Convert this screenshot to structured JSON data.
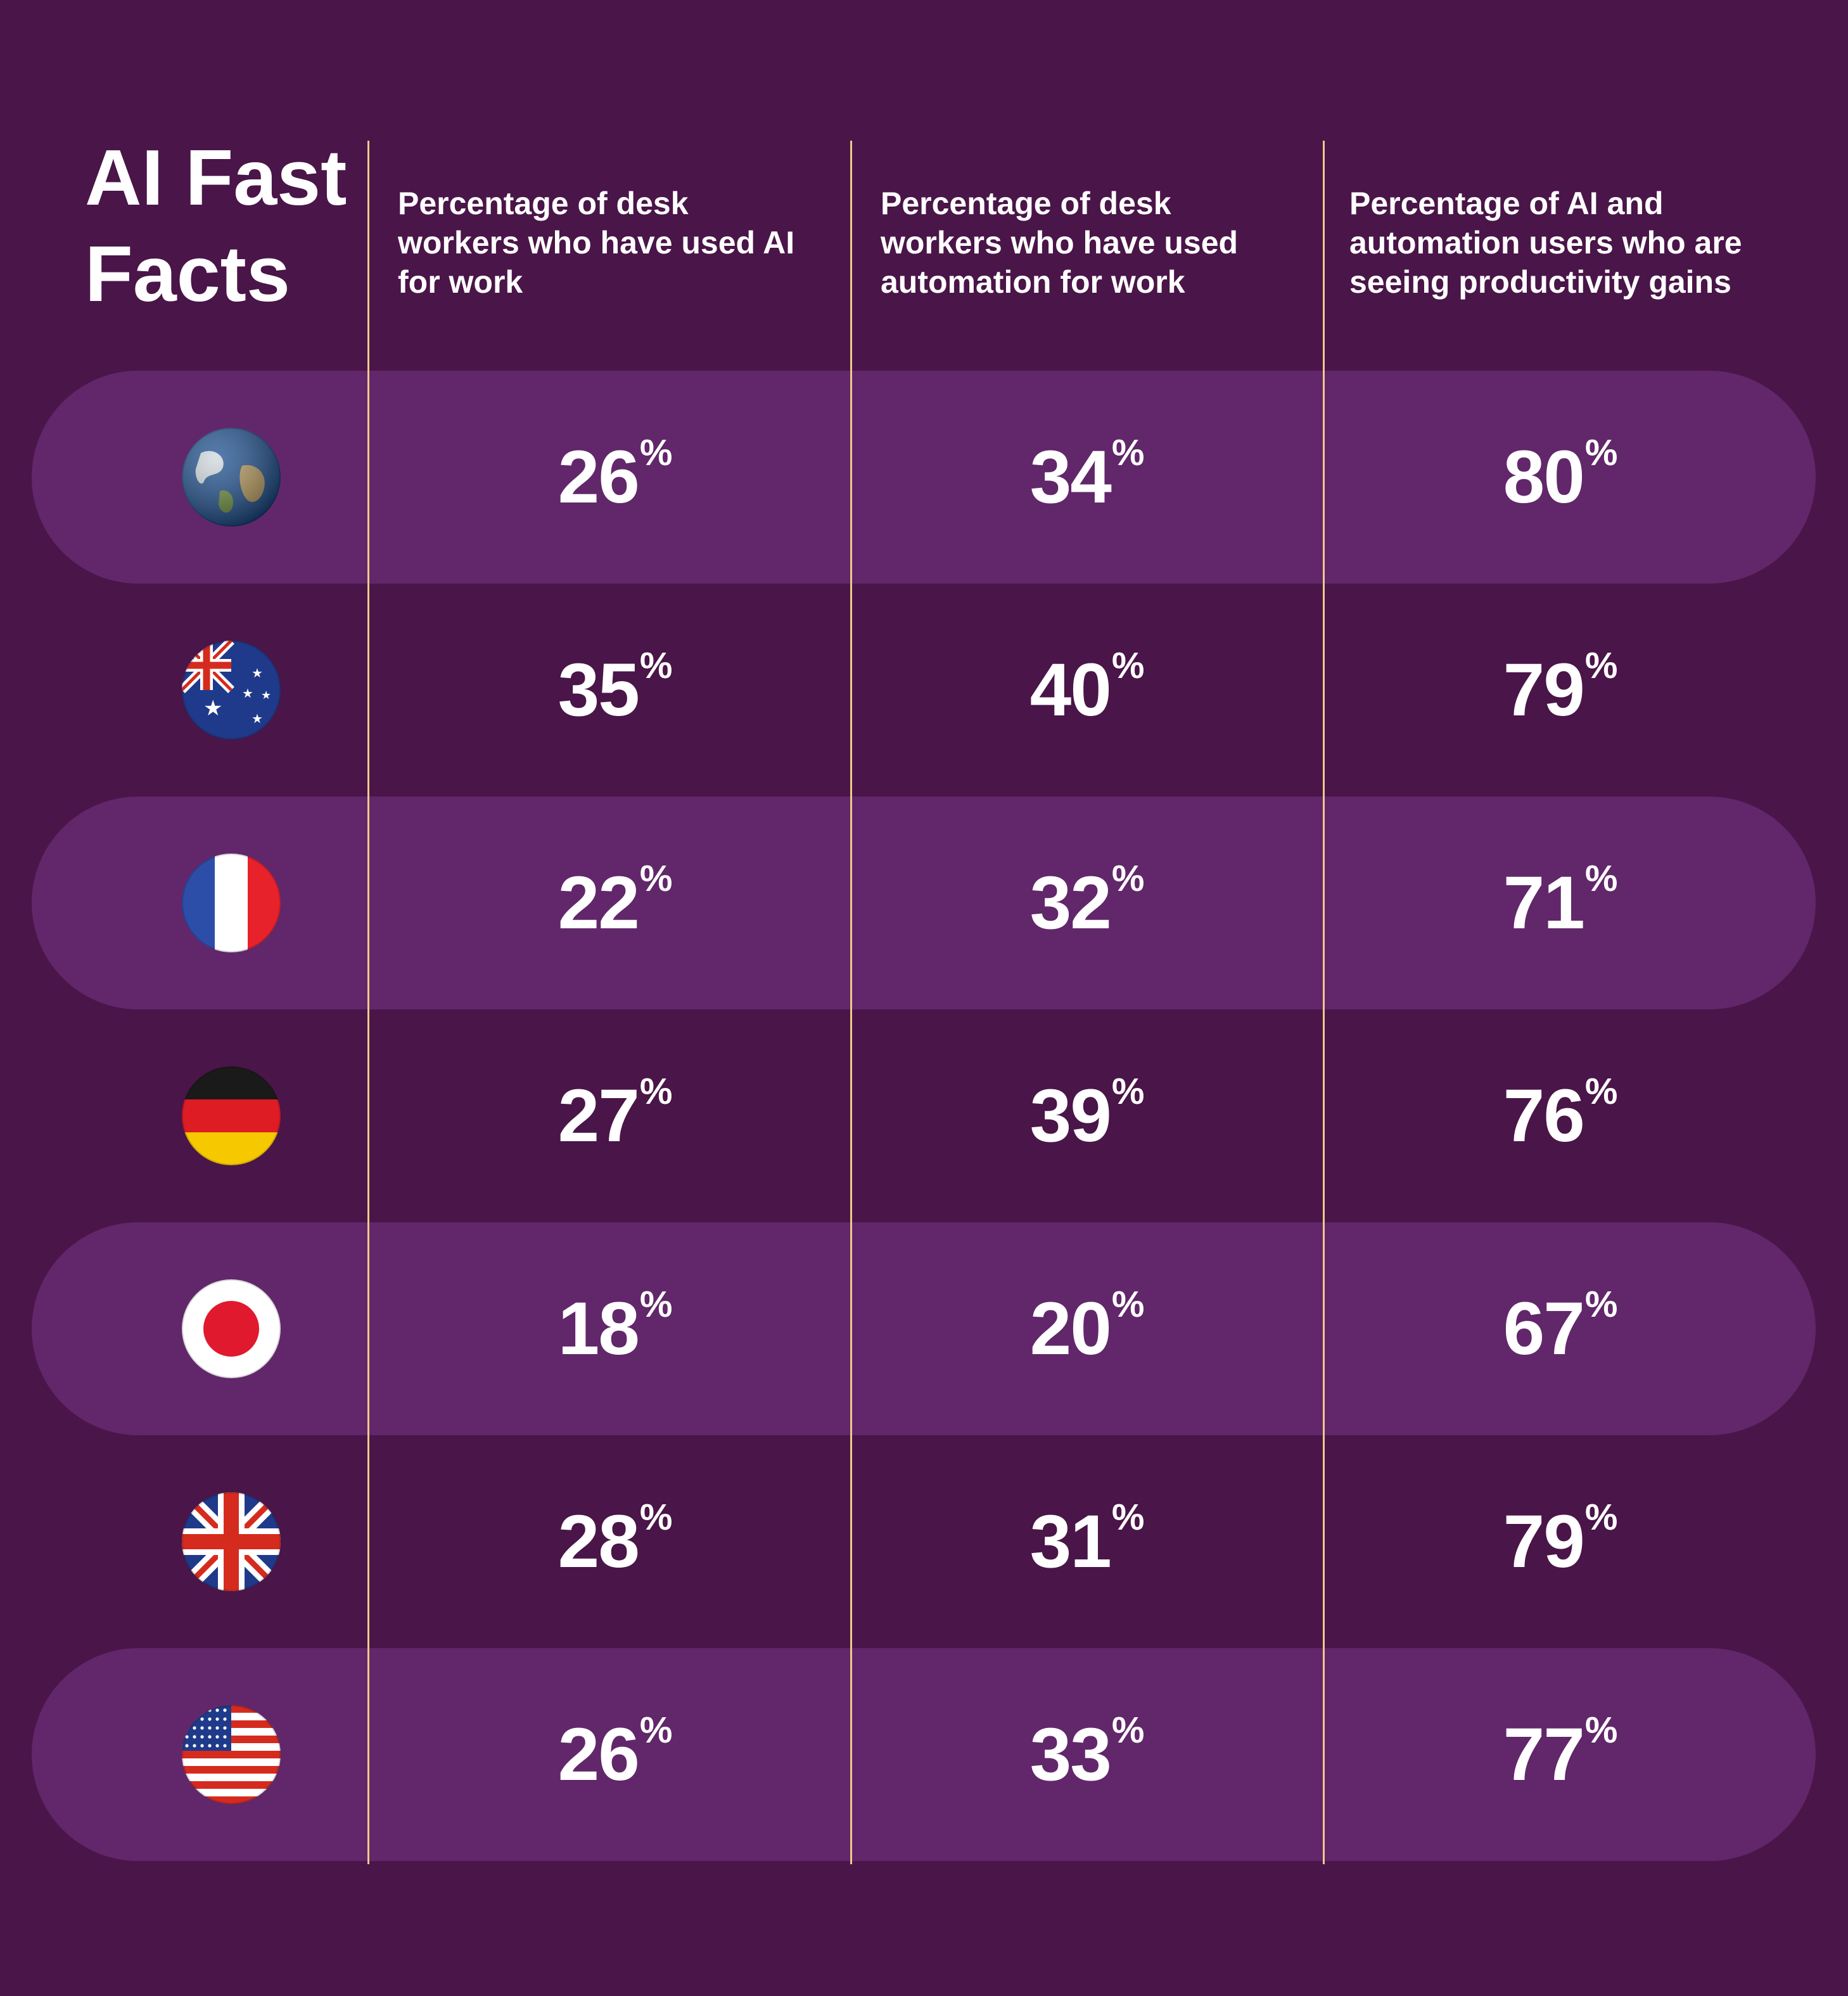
{
  "title_line1": "AI Fast",
  "title_line2": "Facts",
  "chart_data": {
    "type": "table",
    "columns": [
      "Percentage of desk workers who have used AI for work",
      "Percentage of desk workers who have used automation for work",
      "Percentage of AI and automation users who are seeing productivity gains"
    ],
    "rows": [
      {
        "icon": "globe-icon",
        "values": [
          26,
          34,
          80
        ]
      },
      {
        "icon": "australia-flag-icon",
        "values": [
          35,
          40,
          79
        ]
      },
      {
        "icon": "france-flag-icon",
        "values": [
          22,
          32,
          71
        ]
      },
      {
        "icon": "germany-flag-icon",
        "values": [
          27,
          39,
          76
        ]
      },
      {
        "icon": "japan-flag-icon",
        "values": [
          18,
          20,
          67
        ]
      },
      {
        "icon": "uk-flag-icon",
        "values": [
          28,
          31,
          79
        ]
      },
      {
        "icon": "usa-flag-icon",
        "values": [
          26,
          33,
          77
        ]
      }
    ],
    "unit": "%"
  },
  "colors": {
    "background": "#4a1548",
    "band": "#61276a",
    "divider": "#f0c98a",
    "text": "#ffffff"
  }
}
